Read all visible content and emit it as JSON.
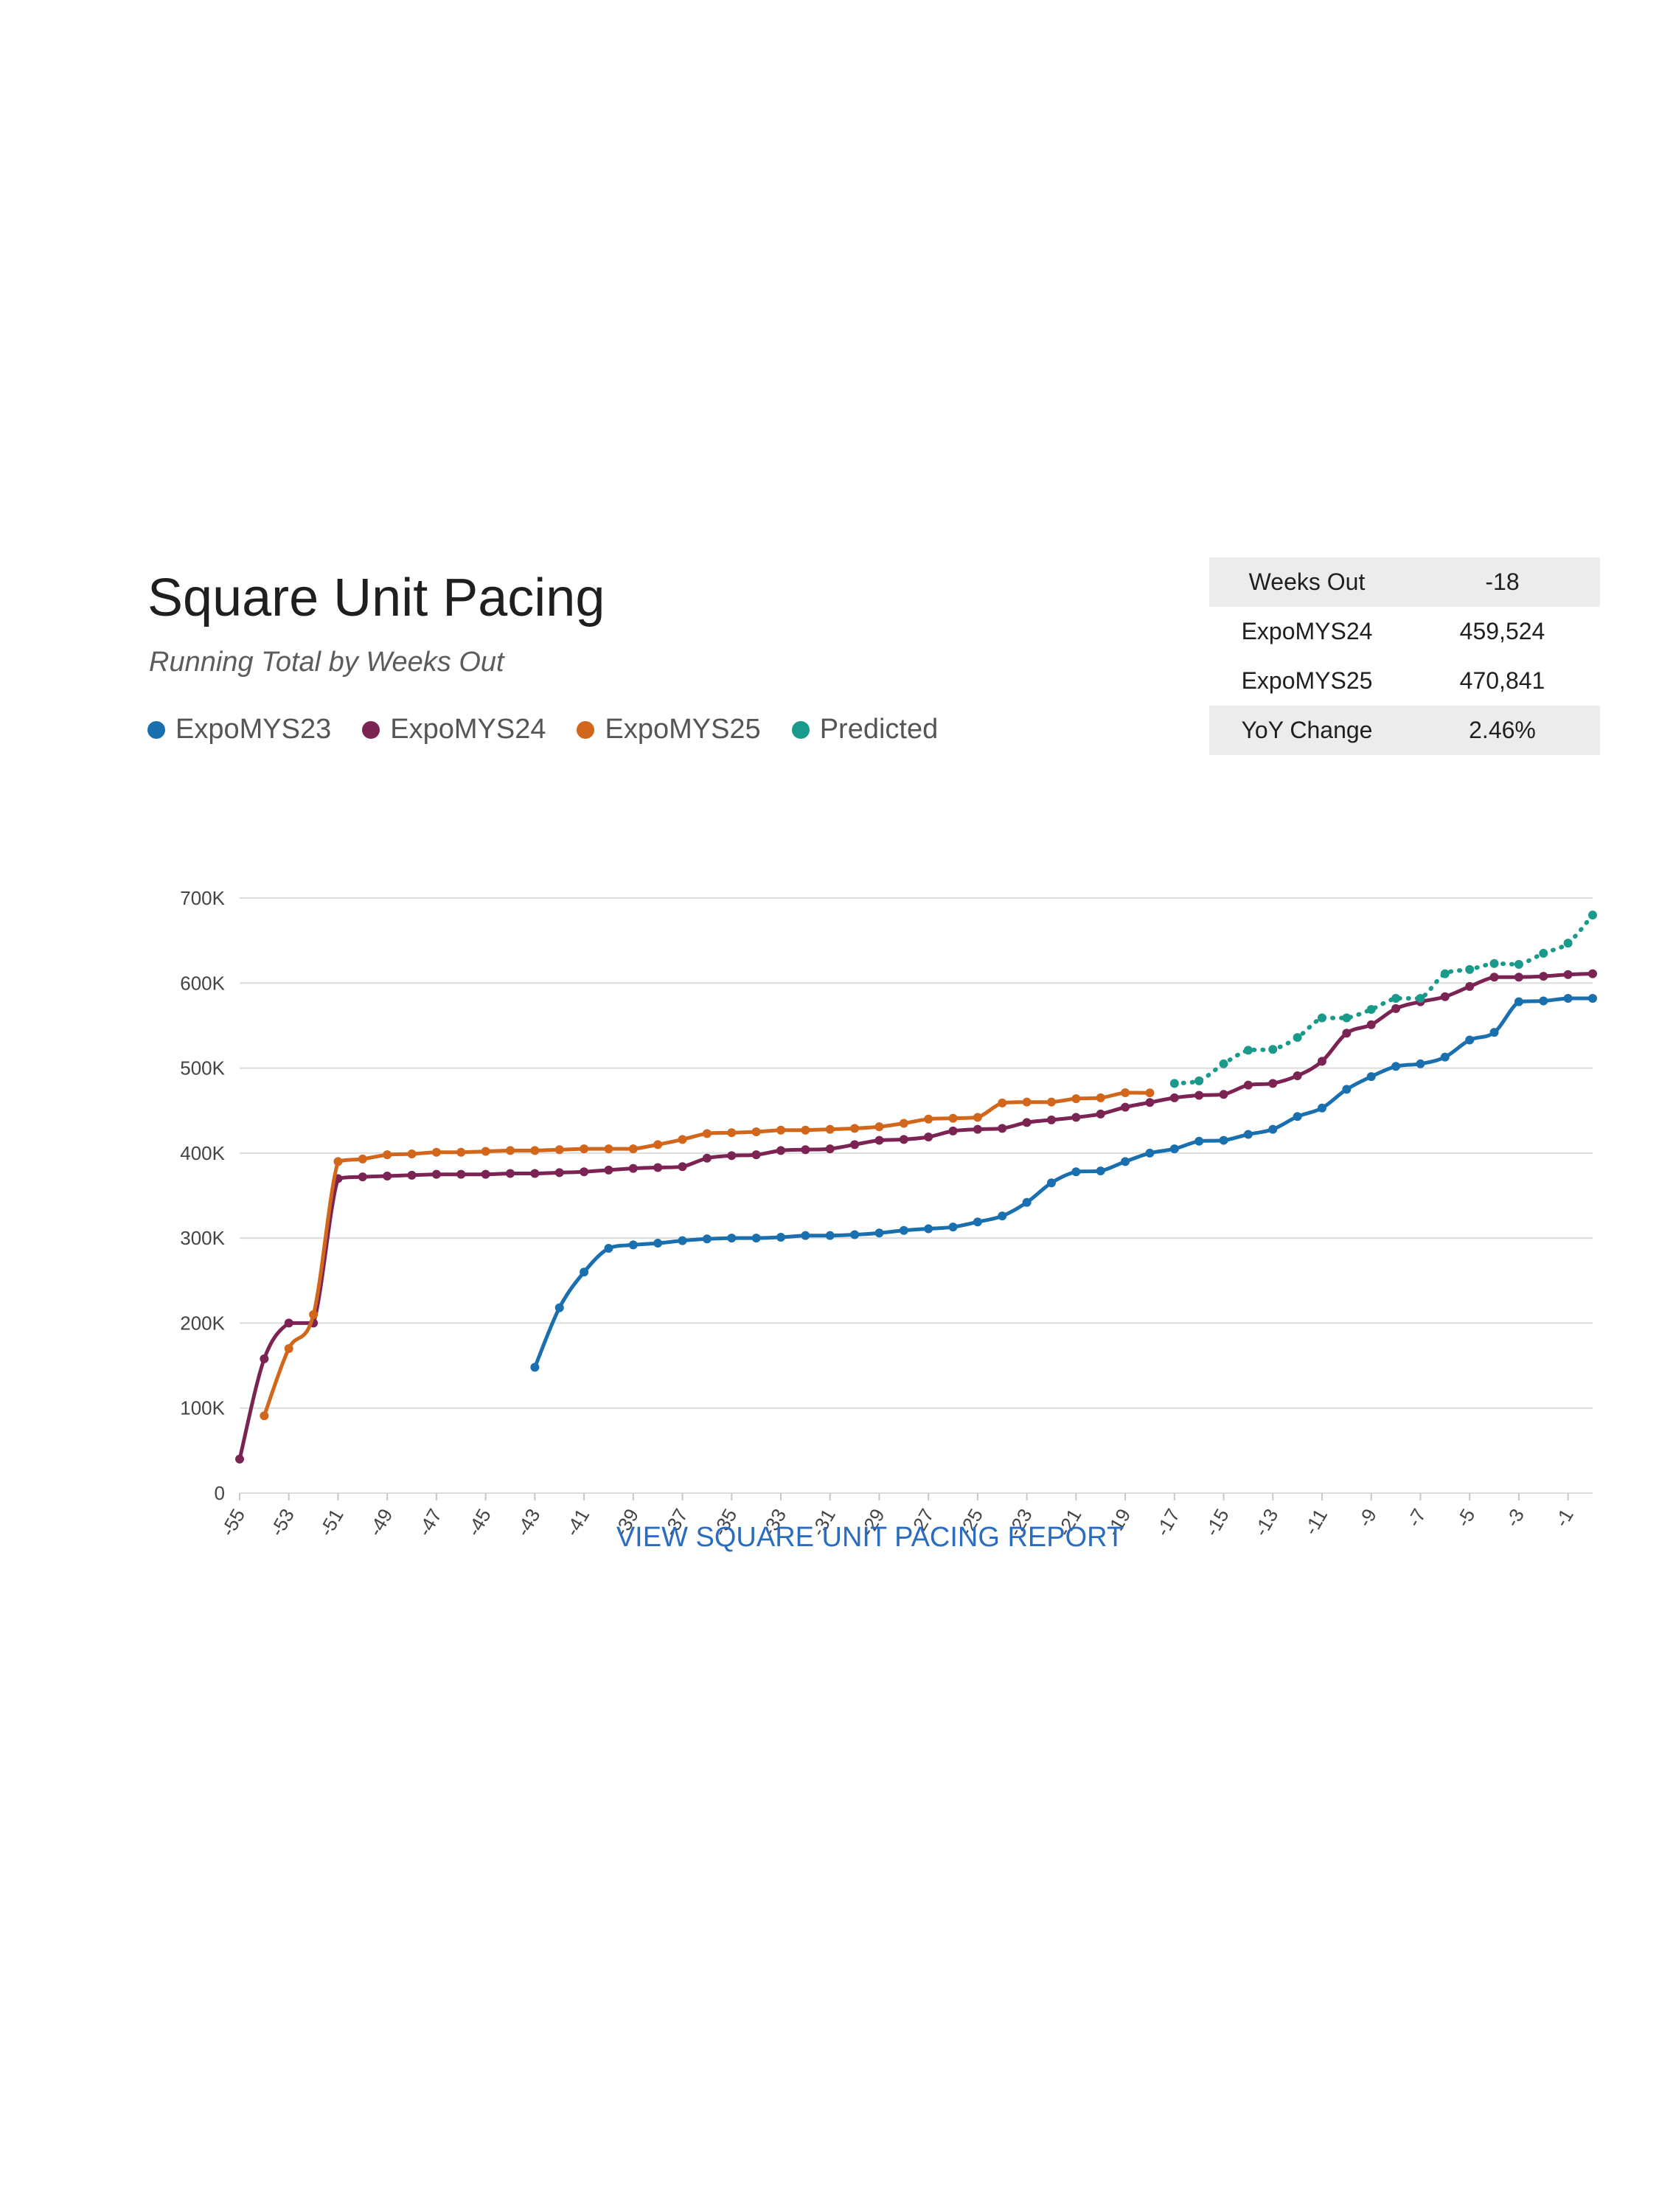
{
  "header": {
    "title": "Square Unit Pacing",
    "subtitle": "Running Total by Weeks Out"
  },
  "legend": [
    {
      "label": "ExpoMYS23",
      "color": "#1a6faf"
    },
    {
      "label": "ExpoMYS24",
      "color": "#7b2352"
    },
    {
      "label": "ExpoMYS25",
      "color": "#d2661a"
    },
    {
      "label": "Predicted",
      "color": "#1a9a8a"
    }
  ],
  "stats_table": {
    "rows": [
      {
        "label": "Weeks Out",
        "value": "-18",
        "shaded": true
      },
      {
        "label": "ExpoMYS24",
        "value": "459,524",
        "shaded": false
      },
      {
        "label": "ExpoMYS25",
        "value": "470,841",
        "shaded": false
      },
      {
        "label": "YoY Change",
        "value": "2.46%",
        "shaded": true
      }
    ]
  },
  "link": {
    "label": "VIEW SQUARE UNIT PACING REPORT"
  },
  "chart_data": {
    "type": "line",
    "xlim": [
      -55,
      0
    ],
    "ylim": [
      0,
      700000
    ],
    "grid": true,
    "legend_position": "top-left",
    "yticks": [
      {
        "value": 0,
        "label": "0"
      },
      {
        "value": 100000,
        "label": "100K"
      },
      {
        "value": 200000,
        "label": "200K"
      },
      {
        "value": 300000,
        "label": "300K"
      },
      {
        "value": 400000,
        "label": "400K"
      },
      {
        "value": 500000,
        "label": "500K"
      },
      {
        "value": 600000,
        "label": "600K"
      },
      {
        "value": 700000,
        "label": "700K"
      }
    ],
    "xticks": [
      {
        "value": -55,
        "label": "-55"
      },
      {
        "value": -53,
        "label": "-53"
      },
      {
        "value": -51,
        "label": "-51"
      },
      {
        "value": -49,
        "label": "-49"
      },
      {
        "value": -47,
        "label": "-47"
      },
      {
        "value": -45,
        "label": "-45"
      },
      {
        "value": -43,
        "label": "-43"
      },
      {
        "value": -41,
        "label": "-41"
      },
      {
        "value": -39,
        "label": "-39"
      },
      {
        "value": -37,
        "label": "-37"
      },
      {
        "value": -35,
        "label": "-35"
      },
      {
        "value": -33,
        "label": "-33"
      },
      {
        "value": -31,
        "label": "-31"
      },
      {
        "value": -29,
        "label": "-29"
      },
      {
        "value": -27,
        "label": "-27"
      },
      {
        "value": -25,
        "label": "-25"
      },
      {
        "value": -23,
        "label": "-23"
      },
      {
        "value": -21,
        "label": "-21"
      },
      {
        "value": -19,
        "label": "-19"
      },
      {
        "value": -17,
        "label": "-17"
      },
      {
        "value": -15,
        "label": "-15"
      },
      {
        "value": -13,
        "label": "-13"
      },
      {
        "value": -11,
        "label": "-11"
      },
      {
        "value": -9,
        "label": "-9"
      },
      {
        "value": -7,
        "label": "-7"
      },
      {
        "value": -5,
        "label": "-5"
      },
      {
        "value": -3,
        "label": "-3"
      },
      {
        "value": -1,
        "label": "-1"
      }
    ],
    "series": [
      {
        "name": "ExpoMYS23",
        "color": "#1a6faf",
        "dashed": false,
        "x": [
          -43,
          -42,
          -41,
          -40,
          -39,
          -38,
          -37,
          -36,
          -35,
          -34,
          -33,
          -32,
          -31,
          -30,
          -29,
          -28,
          -27,
          -26,
          -25,
          -24,
          -23,
          -22,
          -21,
          -20,
          -19,
          -18,
          -17,
          -16,
          -15,
          -14,
          -13,
          -12,
          -11,
          -10,
          -9,
          -8,
          -7,
          -6,
          -5,
          -4,
          -3,
          -2,
          -1,
          0
        ],
        "y": [
          148000,
          218000,
          260000,
          288000,
          292000,
          294000,
          297000,
          299000,
          300000,
          300000,
          301000,
          303000,
          303000,
          304000,
          306000,
          309000,
          311000,
          313000,
          319000,
          326000,
          342000,
          365000,
          378000,
          379000,
          390000,
          400000,
          405000,
          414000,
          415000,
          422000,
          428000,
          443000,
          453000,
          475000,
          490000,
          502000,
          505000,
          513000,
          533000,
          542000,
          578000,
          579000,
          582000,
          582000
        ]
      },
      {
        "name": "ExpoMYS24",
        "color": "#7b2352",
        "dashed": false,
        "x": [
          -55,
          -54,
          -53,
          -52,
          -51,
          -50,
          -49,
          -48,
          -47,
          -46,
          -45,
          -44,
          -43,
          -42,
          -41,
          -40,
          -39,
          -38,
          -37,
          -36,
          -35,
          -34,
          -33,
          -32,
          -31,
          -30,
          -29,
          -28,
          -27,
          -26,
          -25,
          -24,
          -23,
          -22,
          -21,
          -20,
          -19,
          -18,
          -17,
          -16,
          -15,
          -14,
          -13,
          -12,
          -11,
          -10,
          -9,
          -8,
          -7,
          -6,
          -5,
          -4,
          -3,
          -2,
          -1,
          0
        ],
        "y": [
          40000,
          158000,
          200000,
          200000,
          370000,
          372000,
          373000,
          374000,
          375000,
          375000,
          375000,
          376000,
          376000,
          377000,
          378000,
          380000,
          382000,
          383000,
          384000,
          394000,
          397000,
          398000,
          403000,
          404000,
          405000,
          410000,
          415000,
          416000,
          419000,
          426000,
          428000,
          429000,
          436000,
          439000,
          442000,
          446000,
          454000,
          459524,
          465000,
          468000,
          469000,
          480000,
          482000,
          491000,
          508000,
          541000,
          551000,
          570000,
          578000,
          584000,
          596000,
          607000,
          607000,
          608000,
          610000,
          611000
        ]
      },
      {
        "name": "ExpoMYS25",
        "color": "#d2661a",
        "dashed": false,
        "x": [
          -54,
          -53,
          -52,
          -51,
          -50,
          -49,
          -48,
          -47,
          -46,
          -45,
          -44,
          -43,
          -42,
          -41,
          -40,
          -39,
          -38,
          -37,
          -36,
          -35,
          -34,
          -33,
          -32,
          -31,
          -30,
          -29,
          -28,
          -27,
          -26,
          -25,
          -24,
          -23,
          -22,
          -21,
          -20,
          -19,
          -18
        ],
        "y": [
          91000,
          170000,
          210000,
          390000,
          393000,
          398000,
          399000,
          401000,
          401000,
          402000,
          403000,
          403000,
          404000,
          405000,
          405000,
          405000,
          410000,
          416000,
          423000,
          424000,
          425000,
          427000,
          427000,
          428000,
          429000,
          431000,
          435000,
          440000,
          441000,
          442000,
          459000,
          460000,
          460000,
          464000,
          465000,
          471000,
          470841
        ]
      },
      {
        "name": "Predicted",
        "color": "#1a9a8a",
        "dashed": true,
        "x": [
          -17,
          -16,
          -15,
          -14,
          -13,
          -12,
          -11,
          -10,
          -9,
          -8,
          -7,
          -6,
          -5,
          -4,
          -3,
          -2,
          -1,
          0
        ],
        "y": [
          482000,
          485000,
          505000,
          521000,
          522000,
          536000,
          559000,
          559000,
          569000,
          582000,
          582000,
          611000,
          616000,
          623000,
          622000,
          635000,
          647000,
          680000
        ]
      }
    ]
  }
}
